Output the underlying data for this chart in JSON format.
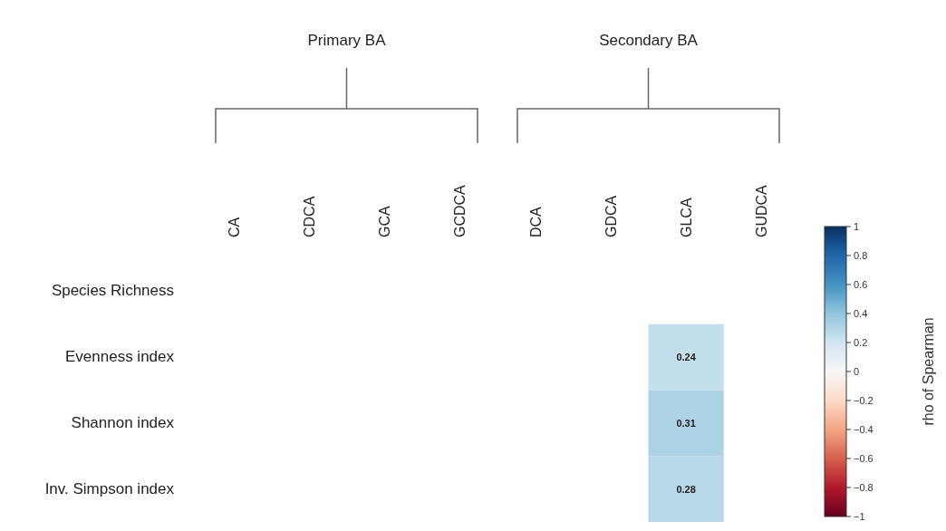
{
  "chart_data": {
    "type": "heatmap",
    "categories": [
      "CA",
      "CDCA",
      "GCA",
      "GCDCA",
      "DCA",
      "GDCA",
      "GLCA",
      "GUDCA"
    ],
    "y_categories": [
      "Species Richness",
      "Evenness index",
      "Shannon index",
      "Inv. Simpson index"
    ],
    "cells": [
      [
        null,
        null,
        null,
        null,
        null,
        null,
        null,
        null
      ],
      [
        null,
        null,
        null,
        null,
        null,
        null,
        0.24,
        null
      ],
      [
        null,
        null,
        null,
        null,
        null,
        null,
        0.31,
        null
      ],
      [
        null,
        null,
        null,
        null,
        null,
        null,
        0.28,
        null
      ]
    ],
    "data_labels": true,
    "clim": [
      -1,
      1
    ],
    "cticks": [
      -1,
      -0.8,
      -0.6,
      -0.4,
      -0.2,
      0,
      0.2,
      0.4,
      0.6,
      0.8,
      1
    ],
    "clabel": "rho of Spearman",
    "annotations": [
      "Primary BA",
      "Secondary BA"
    ]
  }
}
